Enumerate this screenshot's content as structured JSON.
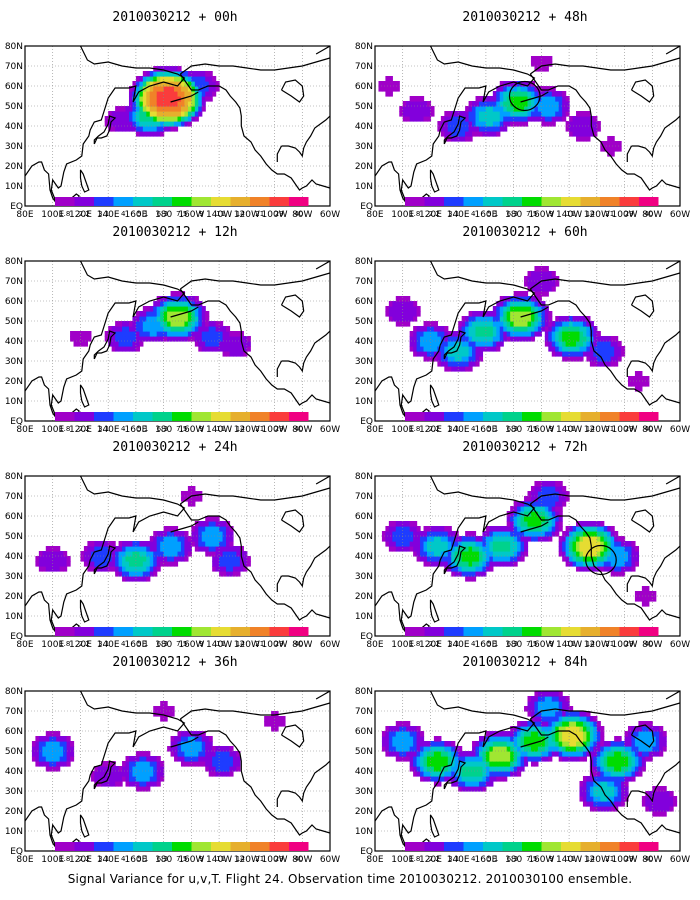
{
  "figure": {
    "caption": "Signal Variance for u,v,T. Flight 24. Observation time 2010030212. 2010030100 ensemble."
  },
  "chart_data": [
    {
      "type": "heatmap",
      "title": "2010030212 + 00h",
      "lead_hours": 0,
      "x_ticks": [
        "80E",
        "100E",
        "120E",
        "140E",
        "160E",
        "180",
        "160W",
        "140W",
        "120W",
        "100W",
        "80W",
        "60W"
      ],
      "y_ticks": [
        "EQ",
        "10N",
        "20N",
        "30N",
        "40N",
        "50N",
        "60N",
        "70N",
        "80N"
      ],
      "colorbar_levels": [
        "1.8",
        "2.2",
        "3.1",
        "4",
        "5.1",
        "6.3",
        "7.5",
        "9",
        "11",
        "14",
        "21",
        "29",
        "40"
      ],
      "hotspots": [
        {
          "lon": 183,
          "lat": 54,
          "value": 40
        },
        {
          "lon": 170,
          "lat": 45,
          "value": 7.5
        },
        {
          "lon": 150,
          "lat": 43,
          "value": 3.1
        },
        {
          "lon": 205,
          "lat": 60,
          "value": 4
        },
        {
          "lon": 95,
          "lat": 52,
          "value": 1.8
        },
        {
          "lon": 85,
          "lat": 35,
          "value": 1.8
        }
      ],
      "circles": []
    },
    {
      "type": "heatmap",
      "title": "2010030212 + 12h",
      "lead_hours": 12,
      "x_ticks": [
        "80E",
        "100E",
        "120E",
        "140E",
        "160E",
        "180",
        "160W",
        "140W",
        "120W",
        "100W",
        "80W",
        "60W"
      ],
      "y_ticks": [
        "EQ",
        "10N",
        "20N",
        "30N",
        "40N",
        "50N",
        "60N",
        "70N",
        "80N"
      ],
      "colorbar_levels": [
        "1.8",
        "2.2",
        "3.1",
        "4",
        "5.1",
        "6.3",
        "7.5",
        "9",
        "11",
        "14",
        "21",
        "29",
        "40"
      ],
      "hotspots": [
        {
          "lon": 190,
          "lat": 52,
          "value": 11
        },
        {
          "lon": 172,
          "lat": 48,
          "value": 5.1
        },
        {
          "lon": 152,
          "lat": 42,
          "value": 4
        },
        {
          "lon": 215,
          "lat": 42,
          "value": 4
        },
        {
          "lon": 232,
          "lat": 38,
          "value": 3.1
        },
        {
          "lon": 120,
          "lat": 42,
          "value": 2.2
        },
        {
          "lon": 95,
          "lat": 48,
          "value": 1.8
        }
      ],
      "circles": []
    },
    {
      "type": "heatmap",
      "title": "2010030212 + 24h",
      "lead_hours": 24,
      "x_ticks": [
        "80E",
        "100E",
        "120E",
        "140E",
        "160E",
        "180",
        "160W",
        "140W",
        "120W",
        "100W",
        "80W",
        "60W"
      ],
      "y_ticks": [
        "EQ",
        "10N",
        "20N",
        "30N",
        "40N",
        "50N",
        "60N",
        "70N",
        "80N"
      ],
      "colorbar_levels": [
        "1.8",
        "2.2",
        "3.1",
        "4",
        "5.1",
        "6.3",
        "7.5",
        "9",
        "11",
        "14",
        "21",
        "29",
        "40"
      ],
      "hotspots": [
        {
          "lon": 160,
          "lat": 38,
          "value": 7.5
        },
        {
          "lon": 185,
          "lat": 45,
          "value": 5.1
        },
        {
          "lon": 215,
          "lat": 50,
          "value": 5.1
        },
        {
          "lon": 228,
          "lat": 38,
          "value": 4
        },
        {
          "lon": 135,
          "lat": 40,
          "value": 4
        },
        {
          "lon": 100,
          "lat": 38,
          "value": 3.1
        },
        {
          "lon": 200,
          "lat": 70,
          "value": 2.2
        },
        {
          "lon": 270,
          "lat": 60,
          "value": 1.8
        },
        {
          "lon": 285,
          "lat": 35,
          "value": 1.8
        }
      ],
      "circles": []
    },
    {
      "type": "heatmap",
      "title": "2010030212 + 36h",
      "lead_hours": 36,
      "x_ticks": [
        "80E",
        "100E",
        "120E",
        "140E",
        "160E",
        "180",
        "160W",
        "140W",
        "120W",
        "100W",
        "80W",
        "60W"
      ],
      "y_ticks": [
        "EQ",
        "10N",
        "20N",
        "30N",
        "40N",
        "50N",
        "60N",
        "70N",
        "80N"
      ],
      "colorbar_levels": [
        "1.8",
        "2.2",
        "3.1",
        "4",
        "5.1",
        "6.3",
        "7.5",
        "9",
        "11",
        "14",
        "21",
        "29",
        "40"
      ],
      "hotspots": [
        {
          "lon": 100,
          "lat": 50,
          "value": 5.1
        },
        {
          "lon": 165,
          "lat": 40,
          "value": 5.1
        },
        {
          "lon": 200,
          "lat": 52,
          "value": 5.1
        },
        {
          "lon": 222,
          "lat": 45,
          "value": 4
        },
        {
          "lon": 140,
          "lat": 38,
          "value": 3.1
        },
        {
          "lon": 180,
          "lat": 70,
          "value": 2.2
        },
        {
          "lon": 260,
          "lat": 65,
          "value": 2.2
        },
        {
          "lon": 290,
          "lat": 45,
          "value": 1.8
        },
        {
          "lon": 95,
          "lat": 25,
          "value": 1.8
        }
      ],
      "circles": []
    },
    {
      "type": "heatmap",
      "title": "2010030212 + 48h",
      "lead_hours": 48,
      "x_ticks": [
        "80E",
        "100E",
        "120E",
        "140E",
        "160E",
        "180",
        "160W",
        "140W",
        "120W",
        "100W",
        "80W",
        "60W"
      ],
      "y_ticks": [
        "EQ",
        "10N",
        "20N",
        "30N",
        "40N",
        "50N",
        "60N",
        "70N",
        "80N"
      ],
      "colorbar_levels": [
        "1.8",
        "2.2",
        "3.1",
        "4",
        "5.1",
        "6.3",
        "7.5",
        "9",
        "11",
        "14",
        "21",
        "29",
        "40"
      ],
      "hotspots": [
        {
          "lon": 183,
          "lat": 52,
          "value": 9
        },
        {
          "lon": 162,
          "lat": 45,
          "value": 6.3
        },
        {
          "lon": 205,
          "lat": 50,
          "value": 5.1
        },
        {
          "lon": 140,
          "lat": 40,
          "value": 4
        },
        {
          "lon": 110,
          "lat": 48,
          "value": 3.1
        },
        {
          "lon": 230,
          "lat": 40,
          "value": 3.1
        },
        {
          "lon": 250,
          "lat": 30,
          "value": 2.2
        },
        {
          "lon": 200,
          "lat": 72,
          "value": 2.2
        },
        {
          "lon": 90,
          "lat": 60,
          "value": 2.2
        }
      ],
      "circles": [
        {
          "lon": 188,
          "lat": 55,
          "radius_deg": 11
        }
      ]
    },
    {
      "type": "heatmap",
      "title": "2010030212 + 60h",
      "lead_hours": 60,
      "x_ticks": [
        "80E",
        "100E",
        "120E",
        "140E",
        "160E",
        "180",
        "160W",
        "140W",
        "120W",
        "100W",
        "80W",
        "60W"
      ],
      "y_ticks": [
        "EQ",
        "10N",
        "20N",
        "30N",
        "40N",
        "50N",
        "60N",
        "70N",
        "80N"
      ],
      "colorbar_levels": [
        "1.8",
        "2.2",
        "3.1",
        "4",
        "5.1",
        "6.3",
        "7.5",
        "9",
        "11",
        "14",
        "21",
        "29",
        "40"
      ],
      "hotspots": [
        {
          "lon": 185,
          "lat": 52,
          "value": 11
        },
        {
          "lon": 158,
          "lat": 45,
          "value": 7.5
        },
        {
          "lon": 222,
          "lat": 42,
          "value": 9
        },
        {
          "lon": 140,
          "lat": 35,
          "value": 6.3
        },
        {
          "lon": 120,
          "lat": 40,
          "value": 5.1
        },
        {
          "lon": 245,
          "lat": 35,
          "value": 4
        },
        {
          "lon": 200,
          "lat": 70,
          "value": 3.1
        },
        {
          "lon": 100,
          "lat": 55,
          "value": 3.1
        },
        {
          "lon": 270,
          "lat": 20,
          "value": 2.2
        }
      ],
      "circles": []
    },
    {
      "type": "heatmap",
      "title": "2010030212 + 72h",
      "lead_hours": 72,
      "x_ticks": [
        "80E",
        "100E",
        "120E",
        "140E",
        "160E",
        "180",
        "160W",
        "140W",
        "120W",
        "100W",
        "80W",
        "60W"
      ],
      "y_ticks": [
        "EQ",
        "10N",
        "20N",
        "30N",
        "40N",
        "50N",
        "60N",
        "70N",
        "80N"
      ],
      "colorbar_levels": [
        "1.8",
        "2.2",
        "3.1",
        "4",
        "5.1",
        "6.3",
        "7.5",
        "9",
        "11",
        "14",
        "21",
        "29",
        "40"
      ],
      "hotspots": [
        {
          "lon": 235,
          "lat": 45,
          "value": 14
        },
        {
          "lon": 195,
          "lat": 58,
          "value": 9
        },
        {
          "lon": 172,
          "lat": 45,
          "value": 7.5
        },
        {
          "lon": 148,
          "lat": 40,
          "value": 9
        },
        {
          "lon": 125,
          "lat": 45,
          "value": 6.3
        },
        {
          "lon": 255,
          "lat": 40,
          "value": 5.1
        },
        {
          "lon": 205,
          "lat": 70,
          "value": 4
        },
        {
          "lon": 100,
          "lat": 50,
          "value": 4
        },
        {
          "lon": 275,
          "lat": 20,
          "value": 2.2
        }
      ],
      "circles": [
        {
          "lon": 243,
          "lat": 38,
          "radius_deg": 11
        }
      ]
    },
    {
      "type": "heatmap",
      "title": "2010030212 + 84h",
      "lead_hours": 84,
      "x_ticks": [
        "80E",
        "100E",
        "120E",
        "140E",
        "160E",
        "180",
        "160W",
        "140W",
        "120W",
        "100W",
        "80W",
        "60W"
      ],
      "y_ticks": [
        "EQ",
        "10N",
        "20N",
        "30N",
        "40N",
        "50N",
        "60N",
        "70N",
        "80N"
      ],
      "colorbar_levels": [
        "1.8",
        "2.2",
        "3.1",
        "4",
        "5.1",
        "6.3",
        "7.5",
        "9",
        "11",
        "14",
        "21",
        "29",
        "40"
      ],
      "hotspots": [
        {
          "lon": 222,
          "lat": 58,
          "value": 14
        },
        {
          "lon": 195,
          "lat": 55,
          "value": 9
        },
        {
          "lon": 170,
          "lat": 48,
          "value": 11
        },
        {
          "lon": 150,
          "lat": 40,
          "value": 7.5
        },
        {
          "lon": 125,
          "lat": 45,
          "value": 9
        },
        {
          "lon": 255,
          "lat": 45,
          "value": 9
        },
        {
          "lon": 245,
          "lat": 30,
          "value": 6.3
        },
        {
          "lon": 275,
          "lat": 55,
          "value": 5.1
        },
        {
          "lon": 100,
          "lat": 55,
          "value": 5.1
        },
        {
          "lon": 205,
          "lat": 72,
          "value": 5.1
        },
        {
          "lon": 285,
          "lat": 25,
          "value": 3.1
        }
      ],
      "circles": []
    }
  ],
  "palette": [
    "#a000c8",
    "#8200dc",
    "#1e3cff",
    "#00a0ff",
    "#00c8c8",
    "#00d28c",
    "#00dc00",
    "#a0e632",
    "#e6dc32",
    "#e6af2d",
    "#f08228",
    "#fa3c3c",
    "#f00082"
  ]
}
